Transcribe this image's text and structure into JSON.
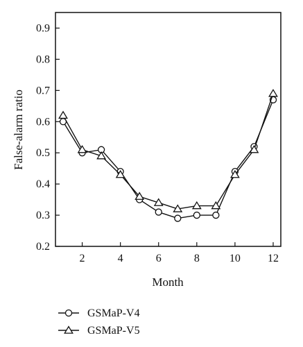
{
  "chart_data": {
    "type": "line",
    "xlabel": "Month",
    "ylabel": "False-alarm ratio",
    "xlim": [
      0.6,
      12.4
    ],
    "ylim": [
      0.2,
      0.95
    ],
    "xticks": [
      2,
      4,
      6,
      8,
      10,
      12
    ],
    "xtick_labels": [
      "2",
      "4",
      "6",
      "8",
      "10",
      "12"
    ],
    "yticks": [
      0.2,
      0.3,
      0.4,
      0.5,
      0.6,
      0.7,
      0.8,
      0.9
    ],
    "ytick_labels": [
      "0.2",
      "0.3",
      "0.4",
      "0.5",
      "0.6",
      "0.7",
      "0.8",
      "0.9"
    ],
    "grid": false,
    "legend_position": "bottom-left",
    "x": [
      1,
      2,
      3,
      4,
      5,
      6,
      7,
      8,
      9,
      10,
      11,
      12
    ],
    "series": [
      {
        "name": "GSMaP-V4",
        "marker": "circle",
        "color": "#111111",
        "values": [
          0.6,
          0.5,
          0.51,
          0.44,
          0.35,
          0.31,
          0.29,
          0.3,
          0.3,
          0.44,
          0.52,
          0.67
        ]
      },
      {
        "name": "GSMaP-V5",
        "marker": "triangle",
        "color": "#111111",
        "values": [
          0.62,
          0.51,
          0.49,
          0.43,
          0.36,
          0.34,
          0.32,
          0.33,
          0.33,
          0.43,
          0.51,
          0.69
        ]
      }
    ]
  }
}
